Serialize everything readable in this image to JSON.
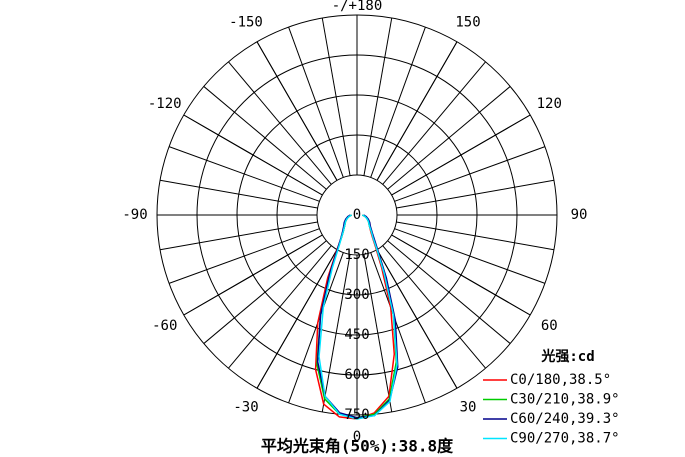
{
  "chart_data": {
    "type": "polar",
    "title": "平均光束角(50%):38.8度",
    "legend_title": "光强:cd",
    "rlim": [
      0,
      750
    ],
    "rticks": [
      0,
      150,
      300,
      450,
      600,
      750
    ],
    "angleticks": [
      {
        "value": 180,
        "label": "-/+180"
      },
      -150,
      -120,
      -90,
      -60,
      -30,
      0,
      30,
      60,
      90,
      120,
      150
    ],
    "angles": [
      -90,
      -80,
      -70,
      -60,
      -50,
      -40,
      -35,
      -30,
      -25,
      -20,
      -15,
      -10,
      -5,
      0,
      5,
      10,
      15,
      20,
      25,
      30,
      35,
      40,
      50,
      60,
      70,
      80,
      90
    ],
    "series": [
      {
        "name": "C0/180,38.5°",
        "color": "#ff0000",
        "values": [
          20,
          30,
          40,
          50,
          60,
          80,
          100,
          150,
          260,
          430,
          600,
          720,
          760,
          765,
          745,
          690,
          540,
          370,
          220,
          140,
          100,
          80,
          60,
          50,
          40,
          30,
          20
        ]
      },
      {
        "name": "C30/210,38.9°",
        "color": "#00cc00",
        "values": [
          20,
          30,
          40,
          50,
          60,
          80,
          100,
          140,
          240,
          400,
          580,
          700,
          750,
          760,
          750,
          700,
          570,
          400,
          250,
          150,
          110,
          85,
          60,
          50,
          40,
          30,
          20
        ]
      },
      {
        "name": "C60/240,39.3°",
        "color": "#00008b",
        "values": [
          25,
          35,
          45,
          55,
          65,
          85,
          105,
          145,
          240,
          400,
          570,
          690,
          745,
          760,
          755,
          705,
          590,
          420,
          260,
          160,
          115,
          90,
          65,
          55,
          45,
          35,
          25
        ]
      },
      {
        "name": "C90/270,38.7°",
        "color": "#00e5ff",
        "values": [
          20,
          30,
          40,
          50,
          60,
          80,
          100,
          135,
          220,
          370,
          550,
          690,
          750,
          765,
          755,
          710,
          580,
          400,
          240,
          150,
          105,
          85,
          60,
          50,
          40,
          30,
          20
        ]
      }
    ]
  }
}
